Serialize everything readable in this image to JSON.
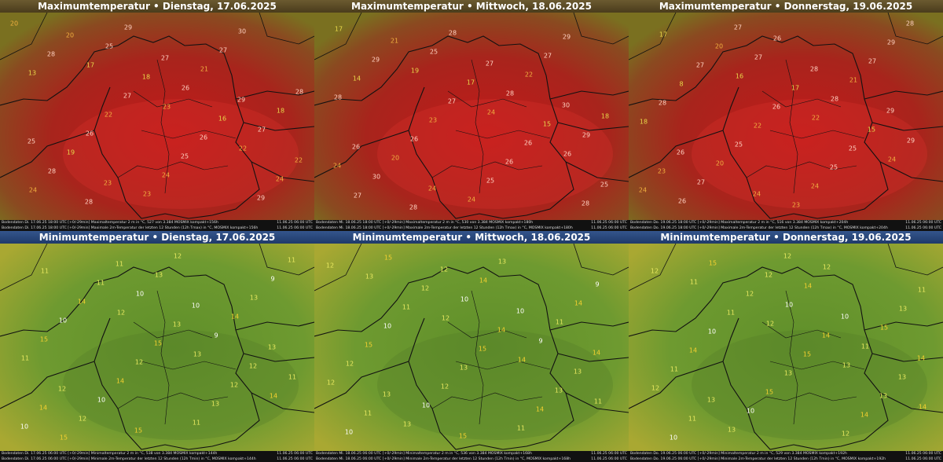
{
  "panels": [
    {
      "title": "Maximumtemperatur • Dienstag, 17.06.2025",
      "footer": [
        {
          "left": "Bodendaten  Di. 17.06.25 18:00 UTC [+0/-29min]   Maximaltemperatur 2 m in °C, 527 von 3.384 MOSMIX kompakt+156h",
          "right": "11.06.25 06:00 UTC"
        },
        {
          "left": "Bodendaten  Di. 17.06.25 18:00 UTC [+0/-29min]   Maximale 2m-Temperatur der letzten 12 Stunden (12h Tmax) in °C, MOSMIX kompakt+156h",
          "right": "11.06.25 06:00 UTC"
        }
      ],
      "values": [
        20,
        17,
        23,
        22,
        24,
        25,
        26,
        27,
        28,
        29,
        21,
        18,
        19,
        23,
        27,
        28,
        26,
        24,
        30,
        13,
        22,
        25,
        29,
        28,
        27,
        26,
        24,
        20,
        18,
        16,
        22,
        28,
        27,
        29,
        25,
        23
      ]
    },
    {
      "title": "Maximumtemperatur • Mittwoch, 18.06.2025",
      "footer": [
        {
          "left": "Bodendaten  Mi. 18.06.25 18:00 UTC [+0/-29min]   Maximaltemperatur 2 m in °C, 530 von 3.384 MOSMIX kompakt+180h",
          "right": "11.06.25 06:00 UTC"
        },
        {
          "left": "Bodendaten  Mi. 18.06.25 18:00 UTC [+0/-29min]   Maximale 2m-Temperatur der letzten 12 Stunden (12h Tmax) in °C, MOSMIX kompakt+180h",
          "right": "11.06.25 06:00 UTC"
        }
      ],
      "values": [
        17,
        19,
        24,
        26,
        27,
        25,
        28,
        29,
        30,
        28,
        22,
        18,
        20,
        24,
        27,
        28,
        26,
        25,
        29,
        14,
        23,
        26,
        28,
        29,
        27,
        26,
        25,
        21,
        17,
        15,
        24,
        28,
        27,
        30,
        26,
        24
      ]
    },
    {
      "title": "Maximumtemperatur • Donnerstag, 19.06.2025",
      "footer": [
        {
          "left": "Bodendaten  Do. 19.06.25 18:00 UTC [+0/-29min]   Maximaltemperatur 2 m in °C, 516 von 3.384 MOSMIX kompakt+204h",
          "right": "11.06.25 06:00 UTC"
        },
        {
          "left": "Bodendaten  Do. 19.06.25 18:00 UTC [+0/-29min]   Maximale 2m-Temperatur der letzten 12 Stunden (12h Tmax) in °C, MOSMIX kompakt+204h",
          "right": "11.06.25 06:00 UTC"
        }
      ],
      "values": [
        17,
        16,
        22,
        24,
        26,
        27,
        28,
        29,
        27,
        26,
        21,
        18,
        20,
        23,
        27,
        28,
        25,
        24,
        29,
        8,
        22,
        25,
        28,
        27,
        26,
        25,
        24,
        20,
        17,
        15,
        23,
        27,
        28,
        29,
        26,
        24
      ]
    },
    {
      "title": "Minimumtemperatur • Dienstag, 17.06.2025",
      "footer": [
        {
          "left": "Bodendaten  Di. 17.06.25 06:00 UTC [+0/-29min]   Minimaltemperatur 2 m in °C, 538 von 3.384 MOSMIX kompakt+144h",
          "right": "11.06.25 06:00 UTC"
        },
        {
          "left": "Bodendaten  Di. 17.06.25 06:00 UTC [+0/-29min]   Minimale 2m-Temperatur der letzten 12 Stunden (12h Tmin) in °C, MOSMIX kompakt+144h",
          "right": "11.06.25 06:00 UTC"
        }
      ],
      "values": [
        11,
        12,
        13,
        14,
        15,
        10,
        9,
        11,
        12,
        13,
        14,
        11,
        10,
        12,
        13,
        15,
        14,
        11,
        9,
        10,
        12,
        13,
        11,
        14,
        15,
        12,
        10,
        11,
        13,
        12,
        14,
        11,
        10,
        13,
        12,
        15
      ]
    },
    {
      "title": "Minimumtemperatur • Mittwoch, 18.06.2025",
      "footer": [
        {
          "left": "Bodendaten  Mi. 18.06.25 06:00 UTC [+0/-29min]   Minimaltemperatur 2 m in °C, 536 von 3.384 MOSMIX kompakt+168h",
          "right": "11.06.25 06:00 UTC"
        },
        {
          "left": "Bodendaten  Mi. 18.06.25 06:00 UTC [+0/-29min]   Minimale 2m-Temperatur der letzten 12 Stunden (12h Tmin) in °C, MOSMIX kompakt+168h",
          "right": "11.06.25 06:00 UTC"
        }
      ],
      "values": [
        13,
        12,
        14,
        11,
        15,
        10,
        9,
        12,
        13,
        14,
        11,
        12,
        10,
        13,
        14,
        15,
        12,
        11,
        9,
        10,
        13,
        14,
        12,
        11,
        15,
        13,
        10,
        12,
        14,
        13,
        11,
        12,
        10,
        14,
        13,
        15
      ]
    },
    {
      "title": "Minimumtemperatur • Donnerstag, 19.06.2025",
      "footer": [
        {
          "left": "Bodendaten  Do. 19.06.25 06:00 UTC [+0/-29min]   Minimaltemperatur 2 m in °C, 529 von 3.384 MOSMIX kompakt+192h",
          "right": "11.06.25 06:00 UTC"
        },
        {
          "left": "Bodendaten  Do. 19.06.25 06:00 UTC [+0/-29min]   Minimale 2m-Temperatur der letzten 12 Stunden (12h Tmin) in °C, MOSMIX kompakt+192h",
          "right": "11.06.25 06:00 UTC"
        }
      ],
      "values": [
        11,
        12,
        13,
        14,
        15,
        10,
        11,
        12,
        13,
        14,
        15,
        11,
        10,
        12,
        13,
        14,
        15,
        12,
        11,
        10,
        13,
        14,
        12,
        11,
        15,
        13,
        10,
        12,
        14,
        13,
        11,
        12,
        10,
        14,
        13,
        12
      ]
    }
  ]
}
